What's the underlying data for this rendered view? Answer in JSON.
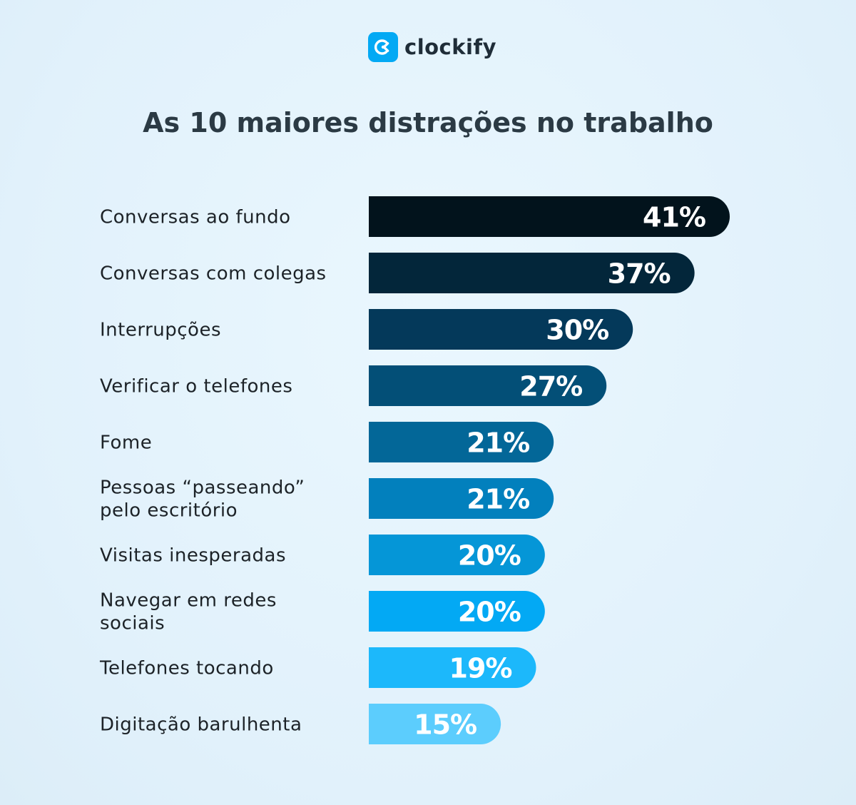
{
  "brand": {
    "name": "clockify",
    "accent": "#03a9f4"
  },
  "chart_data": {
    "type": "bar",
    "orientation": "horizontal",
    "title": "As 10 maiores distrações no trabalho",
    "categories": [
      "Conversas ao fundo",
      "Conversas com colegas",
      "Interrupções",
      "Verificar o telefones",
      "Fome",
      "Pessoas “passeando” pelo escritório",
      "Visitas inesperadas",
      "Navegar em redes sociais",
      "Telefones tocando",
      "Digitação barulhenta"
    ],
    "category_lines": [
      [
        "Conversas ao fundo"
      ],
      [
        "Conversas com colegas"
      ],
      [
        "Interrupções"
      ],
      [
        "Verificar o telefones"
      ],
      [
        "Fome"
      ],
      [
        "Pessoas “passeando”",
        "pelo escritório"
      ],
      [
        "Visitas inesperadas"
      ],
      [
        "Navegar em redes",
        "sociais"
      ],
      [
        "Telefones tocando"
      ],
      [
        "Digitação barulhenta"
      ]
    ],
    "values": [
      41,
      37,
      30,
      27,
      21,
      21,
      20,
      20,
      19,
      15
    ],
    "value_labels": [
      "41%",
      "37%",
      "30%",
      "27%",
      "21%",
      "21%",
      "20%",
      "20%",
      "19%",
      "15%"
    ],
    "unit": "%",
    "colors": [
      "#02131c",
      "#03263a",
      "#04395a",
      "#034f77",
      "#036798",
      "#0280bd",
      "#0596d7",
      "#03a9f4",
      "#1cb8fb",
      "#5ccdfd"
    ],
    "grid": false,
    "legend": "none"
  }
}
